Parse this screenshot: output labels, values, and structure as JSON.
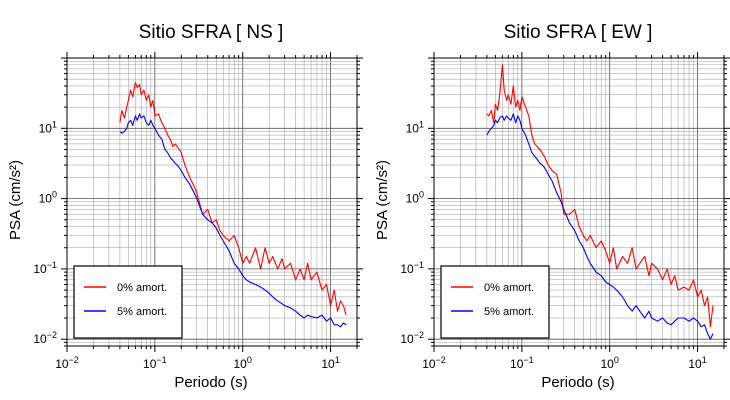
{
  "chart_data": [
    {
      "type": "line",
      "title": "Sitio SFRA [ NS ]",
      "xlabel": "Periodo (s)",
      "ylabel": "PSA (cm/s²)",
      "xscale": "log",
      "yscale": "log",
      "xlim": [
        0.01,
        20
      ],
      "ylim": [
        0.008,
        100
      ],
      "grid": true,
      "legend_position": "bottom-left",
      "x_ticks": [
        {
          "value": 0.01,
          "base": "10",
          "exp": "−2"
        },
        {
          "value": 0.1,
          "base": "10",
          "exp": "−1"
        },
        {
          "value": 1,
          "base": "10",
          "exp": "0"
        },
        {
          "value": 10,
          "base": "10",
          "exp": "1"
        }
      ],
      "y_ticks": [
        {
          "value": 0.01,
          "base": "10",
          "exp": "−2"
        },
        {
          "value": 0.1,
          "base": "10",
          "exp": "−1"
        },
        {
          "value": 1,
          "base": "10",
          "exp": "0"
        },
        {
          "value": 10,
          "base": "10",
          "exp": "1"
        }
      ],
      "series": [
        {
          "name": "0% amort.",
          "color": "#ff0000",
          "x": [
            0.04,
            0.042,
            0.045,
            0.048,
            0.05,
            0.053,
            0.056,
            0.06,
            0.063,
            0.067,
            0.07,
            0.075,
            0.08,
            0.085,
            0.09,
            0.095,
            0.1,
            0.11,
            0.12,
            0.13,
            0.14,
            0.15,
            0.16,
            0.17,
            0.18,
            0.2,
            0.22,
            0.25,
            0.28,
            0.3,
            0.35,
            0.4,
            0.45,
            0.5,
            0.55,
            0.6,
            0.7,
            0.8,
            0.9,
            1.0,
            1.1,
            1.2,
            1.4,
            1.6,
            1.8,
            2.0,
            2.2,
            2.5,
            2.8,
            3.0,
            3.5,
            4.0,
            4.5,
            5.0,
            5.5,
            6.0,
            7.0,
            8.0,
            9.0,
            10.0,
            11.0,
            12.0,
            13.0,
            14.0,
            15.0
          ],
          "values": [
            12,
            18,
            14,
            20,
            25,
            35,
            28,
            45,
            38,
            42,
            30,
            35,
            25,
            30,
            20,
            25,
            15,
            16,
            12,
            10,
            8,
            7,
            5.5,
            6,
            5.5,
            4.5,
            3,
            2,
            1.5,
            1.2,
            0.6,
            0.7,
            0.45,
            0.5,
            0.35,
            0.3,
            0.25,
            0.3,
            0.2,
            0.12,
            0.15,
            0.12,
            0.2,
            0.1,
            0.2,
            0.12,
            0.15,
            0.1,
            0.14,
            0.1,
            0.12,
            0.07,
            0.1,
            0.07,
            0.12,
            0.07,
            0.09,
            0.05,
            0.06,
            0.03,
            0.05,
            0.025,
            0.035,
            0.03,
            0.022
          ]
        },
        {
          "name": "5% amort.",
          "color": "#0000ff",
          "x": [
            0.04,
            0.042,
            0.045,
            0.048,
            0.05,
            0.053,
            0.056,
            0.06,
            0.063,
            0.067,
            0.07,
            0.075,
            0.08,
            0.085,
            0.09,
            0.095,
            0.1,
            0.11,
            0.12,
            0.13,
            0.14,
            0.15,
            0.16,
            0.17,
            0.18,
            0.2,
            0.22,
            0.25,
            0.28,
            0.3,
            0.35,
            0.4,
            0.45,
            0.5,
            0.55,
            0.6,
            0.7,
            0.8,
            0.9,
            1.0,
            1.1,
            1.2,
            1.4,
            1.6,
            1.8,
            2.0,
            2.2,
            2.5,
            2.8,
            3.0,
            3.5,
            4.0,
            4.5,
            5.0,
            5.5,
            6.0,
            7.0,
            8.0,
            9.0,
            10.0,
            11.0,
            12.0,
            13.0,
            14.0,
            15.0
          ],
          "values": [
            9,
            8.5,
            9,
            10,
            12,
            13,
            11,
            15,
            13,
            16,
            14,
            15,
            12,
            11,
            13,
            11,
            10,
            8,
            7,
            5,
            4.5,
            3.8,
            3.5,
            3.2,
            3,
            2.5,
            2,
            1.6,
            1.2,
            1.0,
            0.6,
            0.5,
            0.45,
            0.38,
            0.3,
            0.25,
            0.18,
            0.12,
            0.1,
            0.08,
            0.07,
            0.065,
            0.06,
            0.055,
            0.05,
            0.045,
            0.04,
            0.035,
            0.032,
            0.03,
            0.028,
            0.025,
            0.022,
            0.02,
            0.022,
            0.021,
            0.02,
            0.022,
            0.018,
            0.02,
            0.016,
            0.016,
            0.015,
            0.017,
            0.016
          ]
        }
      ]
    },
    {
      "type": "line",
      "title": "Sitio SFRA [ EW ]",
      "xlabel": "Periodo (s)",
      "ylabel": "PSA (cm/s²)",
      "xscale": "log",
      "yscale": "log",
      "xlim": [
        0.01,
        20
      ],
      "ylim": [
        0.008,
        100
      ],
      "grid": true,
      "legend_position": "bottom-left",
      "x_ticks": [
        {
          "value": 0.01,
          "base": "10",
          "exp": "−2"
        },
        {
          "value": 0.1,
          "base": "10",
          "exp": "−1"
        },
        {
          "value": 1,
          "base": "10",
          "exp": "0"
        },
        {
          "value": 10,
          "base": "10",
          "exp": "1"
        }
      ],
      "y_ticks": [
        {
          "value": 0.01,
          "base": "10",
          "exp": "−2"
        },
        {
          "value": 0.1,
          "base": "10",
          "exp": "−1"
        },
        {
          "value": 1,
          "base": "10",
          "exp": "0"
        },
        {
          "value": 10,
          "base": "10",
          "exp": "1"
        }
      ],
      "series": [
        {
          "name": "0% amort.",
          "color": "#ff0000",
          "x": [
            0.04,
            0.042,
            0.045,
            0.048,
            0.05,
            0.053,
            0.056,
            0.06,
            0.063,
            0.067,
            0.07,
            0.075,
            0.08,
            0.085,
            0.09,
            0.095,
            0.1,
            0.11,
            0.12,
            0.13,
            0.14,
            0.15,
            0.16,
            0.17,
            0.18,
            0.2,
            0.22,
            0.25,
            0.28,
            0.3,
            0.35,
            0.4,
            0.45,
            0.5,
            0.55,
            0.6,
            0.7,
            0.8,
            0.9,
            1.0,
            1.1,
            1.2,
            1.4,
            1.6,
            1.8,
            2.0,
            2.2,
            2.5,
            2.8,
            3.0,
            3.5,
            4.0,
            4.5,
            5.0,
            5.5,
            6.0,
            7.0,
            8.0,
            9.0,
            10.0,
            11.0,
            12.0,
            13.0,
            14.0,
            15.0
          ],
          "values": [
            16,
            15,
            18,
            12,
            22,
            18,
            30,
            80,
            35,
            25,
            30,
            22,
            40,
            20,
            25,
            18,
            28,
            20,
            15,
            8,
            6,
            5.5,
            5,
            4.5,
            4,
            3,
            2.5,
            2.2,
            1.2,
            0.6,
            0.6,
            0.7,
            0.4,
            0.3,
            0.25,
            0.3,
            0.2,
            0.25,
            0.18,
            0.12,
            0.2,
            0.1,
            0.15,
            0.12,
            0.2,
            0.1,
            0.12,
            0.15,
            0.08,
            0.12,
            0.1,
            0.07,
            0.1,
            0.06,
            0.08,
            0.05,
            0.055,
            0.05,
            0.07,
            0.04,
            0.05,
            0.03,
            0.04,
            0.015,
            0.03
          ]
        },
        {
          "name": "5% amort.",
          "color": "#0000ff",
          "x": [
            0.04,
            0.042,
            0.045,
            0.048,
            0.05,
            0.053,
            0.056,
            0.06,
            0.063,
            0.067,
            0.07,
            0.075,
            0.08,
            0.085,
            0.09,
            0.095,
            0.1,
            0.11,
            0.12,
            0.13,
            0.14,
            0.15,
            0.16,
            0.17,
            0.18,
            0.2,
            0.22,
            0.25,
            0.28,
            0.3,
            0.35,
            0.4,
            0.45,
            0.5,
            0.55,
            0.6,
            0.7,
            0.8,
            0.9,
            1.0,
            1.1,
            1.2,
            1.4,
            1.6,
            1.8,
            2.0,
            2.2,
            2.5,
            2.8,
            3.0,
            3.5,
            4.0,
            4.5,
            5.0,
            5.5,
            6.0,
            7.0,
            8.0,
            9.0,
            10.0,
            11.0,
            12.0,
            13.0,
            14.0,
            15.0
          ],
          "values": [
            8,
            9,
            10,
            11,
            13,
            12,
            14,
            15,
            13,
            15,
            14,
            13,
            16,
            12,
            15,
            13,
            10,
            8,
            6,
            4.5,
            4,
            3.6,
            3.2,
            3,
            2.8,
            2.2,
            1.8,
            1.2,
            0.9,
            0.7,
            0.45,
            0.35,
            0.25,
            0.2,
            0.15,
            0.12,
            0.09,
            0.08,
            0.065,
            0.06,
            0.055,
            0.05,
            0.04,
            0.03,
            0.025,
            0.03,
            0.025,
            0.02,
            0.025,
            0.02,
            0.018,
            0.02,
            0.017,
            0.016,
            0.018,
            0.02,
            0.02,
            0.018,
            0.02,
            0.018,
            0.015,
            0.016,
            0.012,
            0.01,
            0.012
          ]
        }
      ]
    }
  ]
}
